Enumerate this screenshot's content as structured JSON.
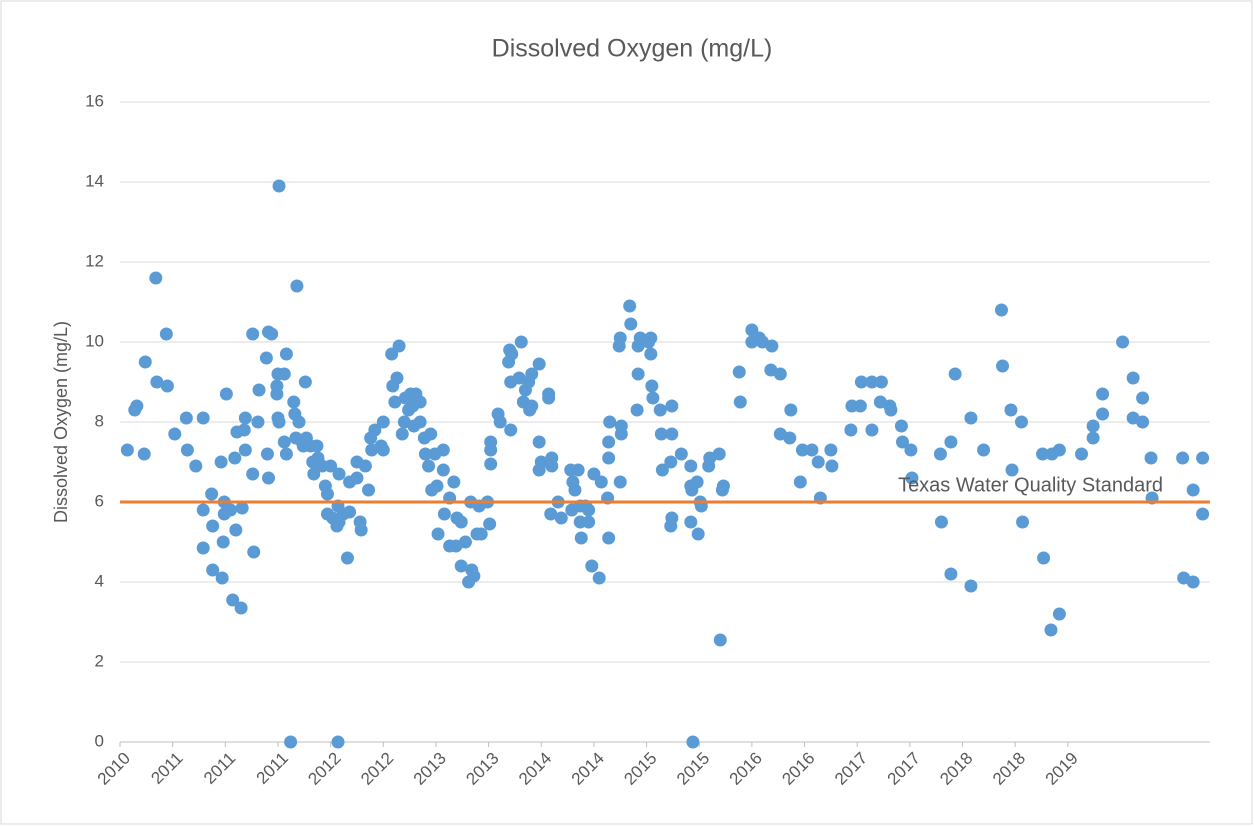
{
  "chart_data": {
    "type": "scatter",
    "title": "Dissolved Oxygen (mg/L)",
    "y_label": "Dissolved Oxygen (mg/L)",
    "ylim": [
      0,
      16
    ],
    "yticks": [
      0,
      2,
      4,
      6,
      8,
      10,
      12,
      14,
      16
    ],
    "xlim": [
      2010,
      2020.35
    ],
    "xticks": [
      {
        "value": 2010,
        "label": "2010"
      },
      {
        "value": 2010.5,
        "label": "2011"
      },
      {
        "value": 2011,
        "label": "2011"
      },
      {
        "value": 2011.5,
        "label": "2011"
      },
      {
        "value": 2012,
        "label": "2012"
      },
      {
        "value": 2012.5,
        "label": "2012"
      },
      {
        "value": 2013,
        "label": "2013"
      },
      {
        "value": 2013.5,
        "label": "2013"
      },
      {
        "value": 2014,
        "label": "2014"
      },
      {
        "value": 2014.5,
        "label": "2014"
      },
      {
        "value": 2015,
        "label": "2015"
      },
      {
        "value": 2015.5,
        "label": "2015"
      },
      {
        "value": 2016,
        "label": "2016"
      },
      {
        "value": 2016.5,
        "label": "2016"
      },
      {
        "value": 2017,
        "label": "2017"
      },
      {
        "value": 2017.5,
        "label": "2017"
      },
      {
        "value": 2018,
        "label": "2018"
      },
      {
        "value": 2018.5,
        "label": "2018"
      },
      {
        "value": 2019,
        "label": "2019"
      }
    ],
    "grid": true,
    "reference_line": {
      "value": 6,
      "label": "Texas Water Quality Standard",
      "color": "#ed7d31",
      "label_color": "#ffc000"
    },
    "series": [
      {
        "color": "#5b9bd5",
        "x": [
          2010.07,
          2010.14,
          2010.16,
          2010.23,
          2010.24,
          2010.34,
          2010.35,
          2010.44,
          2010.45,
          2010.52,
          2010.63,
          2010.64,
          2010.72,
          2010.79,
          2010.79,
          2010.79,
          2010.87,
          2010.88,
          2010.88,
          2010.96,
          2010.97,
          2010.98,
          2010.99,
          2010.99,
          2011.01,
          2011.05,
          2011.07,
          2011.09,
          2011.1,
          2011.11,
          2011.15,
          2011.16,
          2011.18,
          2011.19,
          2011.19,
          2011.26,
          2011.26,
          2011.27,
          2011.31,
          2011.32,
          2011.39,
          2011.4,
          2011.41,
          2011.41,
          2011.44,
          2011.49,
          2011.49,
          2011.5,
          2011.5,
          2011.51,
          2011.51,
          2011.56,
          2011.56,
          2011.58,
          2011.58,
          2011.62,
          2011.65,
          2011.66,
          2011.67,
          2011.68,
          2011.7,
          2011.73,
          2011.74,
          2011.76,
          2011.77,
          2011.81,
          2011.83,
          2011.84,
          2011.87,
          2011.88,
          2011.92,
          2011.95,
          2011.97,
          2011.97,
          2012.0,
          2012.02,
          2012.06,
          2012.07,
          2012.07,
          2012.08,
          2012.08,
          2012.12,
          2012.16,
          2012.18,
          2012.18,
          2012.25,
          2012.25,
          2012.28,
          2012.29,
          2012.33,
          2012.36,
          2012.38,
          2012.39,
          2012.42,
          2012.48,
          2012.5,
          2012.5,
          2012.58,
          2012.59,
          2012.61,
          2012.63,
          2012.65,
          2012.68,
          2012.7,
          2012.71,
          2012.74,
          2012.76,
          2012.78,
          2012.79,
          2012.81,
          2012.85,
          2012.85,
          2012.89,
          2012.9,
          2012.93,
          2012.95,
          2012.96,
          2012.99,
          2013.01,
          2013.02,
          2013.07,
          2013.07,
          2013.08,
          2013.13,
          2013.13,
          2013.17,
          2013.19,
          2013.2,
          2013.24,
          2013.24,
          2013.28,
          2013.31,
          2013.33,
          2013.34,
          2013.36,
          2013.39,
          2013.41,
          2013.43,
          2013.49,
          2013.51,
          2013.52,
          2013.52,
          2013.52,
          2013.59,
          2013.61,
          2013.69,
          2013.7,
          2013.71,
          2013.71,
          2013.72,
          2013.79,
          2013.81,
          2013.83,
          2013.85,
          2013.88,
          2013.89,
          2013.91,
          2013.91,
          2013.98,
          2013.98,
          2013.98,
          2014.0,
          2014.07,
          2014.07,
          2014.09,
          2014.1,
          2014.1,
          2014.16,
          2014.19,
          2014.28,
          2014.29,
          2014.3,
          2014.32,
          2014.35,
          2014.37,
          2014.37,
          2014.38,
          2014.42,
          2014.45,
          2014.45,
          2014.48,
          2014.5,
          2014.55,
          2014.57,
          2014.63,
          2014.64,
          2014.64,
          2014.64,
          2014.65,
          2014.74,
          2014.75,
          2014.75,
          2014.76,
          2014.76,
          2014.84,
          2014.85,
          2014.91,
          2014.92,
          2014.92,
          2014.94,
          2015.02,
          2015.04,
          2015.04,
          2015.05,
          2015.06,
          2015.13,
          2015.14,
          2015.15,
          2015.23,
          2015.23,
          2015.24,
          2015.24,
          2015.24,
          2015.33,
          2015.42,
          2015.42,
          2015.42,
          2015.43,
          2015.44,
          2015.48,
          2015.49,
          2015.51,
          2015.52,
          2015.59,
          2015.6,
          2015.69,
          2015.7,
          2015.72,
          2015.73,
          2015.88,
          2015.89,
          2016.0,
          2016.0,
          2016.07,
          2016.1,
          2016.18,
          2016.19,
          2016.27,
          2016.27,
          2016.36,
          2016.37,
          2016.46,
          2016.48,
          2016.57,
          2016.63,
          2016.65,
          2016.75,
          2016.76,
          2016.94,
          2016.95,
          2017.03,
          2017.04,
          2017.14,
          2017.14,
          2017.22,
          2017.23,
          2017.31,
          2017.32,
          2017.42,
          2017.43,
          2017.51,
          2017.52,
          2017.79,
          2017.8,
          2017.89,
          2017.89,
          2017.93,
          2018.08,
          2018.08,
          2018.2,
          2018.37,
          2018.38,
          2018.46,
          2018.47,
          2018.56,
          2018.57,
          2018.76,
          2018.77,
          2018.84,
          2018.85,
          2018.92,
          2018.92,
          2019.13,
          2019.24,
          2019.24,
          2019.33,
          2019.33,
          2019.52,
          2019.62,
          2019.62,
          2019.71,
          2019.71,
          2019.79,
          2019.8,
          2020.09,
          2020.1,
          2020.19,
          2020.19,
          2020.28,
          2020.28
        ],
        "values": [
          7.3,
          8.3,
          8.4,
          7.2,
          9.5,
          11.6,
          9.0,
          10.2,
          8.9,
          7.7,
          8.1,
          7.3,
          6.9,
          8.1,
          5.8,
          4.85,
          6.2,
          5.4,
          4.3,
          7.0,
          4.1,
          5.0,
          6.0,
          5.7,
          8.7,
          5.8,
          3.55,
          7.1,
          5.3,
          7.75,
          3.35,
          5.85,
          7.8,
          8.1,
          7.3,
          10.2,
          6.7,
          4.75,
          8.0,
          8.8,
          9.6,
          7.2,
          6.6,
          10.25,
          10.2,
          8.9,
          8.7,
          8.1,
          9.2,
          8.0,
          13.9,
          9.2,
          7.5,
          9.7,
          7.2,
          0,
          8.5,
          8.2,
          7.6,
          11.4,
          8.0,
          7.5,
          7.4,
          9.0,
          7.6,
          7.4,
          7.0,
          6.7,
          7.4,
          7.1,
          6.9,
          6.4,
          6.2,
          5.7,
          6.9,
          5.6,
          5.4,
          5.9,
          0,
          6.7,
          5.5,
          5.7,
          4.6,
          6.5,
          5.75,
          7.0,
          6.6,
          5.5,
          5.3,
          6.9,
          6.3,
          7.6,
          7.3,
          7.8,
          7.4,
          8.0,
          7.3,
          9.7,
          8.9,
          8.5,
          9.1,
          9.9,
          7.7,
          8.0,
          8.6,
          8.3,
          8.7,
          8.4,
          7.9,
          8.7,
          8.5,
          8.0,
          7.6,
          7.2,
          6.9,
          7.7,
          6.3,
          7.2,
          6.4,
          5.2,
          7.3,
          6.8,
          5.7,
          4.9,
          6.1,
          6.5,
          4.9,
          5.6,
          5.5,
          4.4,
          5.0,
          4.0,
          6.0,
          4.3,
          4.15,
          5.2,
          5.9,
          5.2,
          6.0,
          5.45,
          7.5,
          7.3,
          6.95,
          8.2,
          8.0,
          9.5,
          9.8,
          7.8,
          9.0,
          9.7,
          9.1,
          10.0,
          8.5,
          8.8,
          9.0,
          8.3,
          8.4,
          9.2,
          9.45,
          7.5,
          6.8,
          7.0,
          8.6,
          8.7,
          5.7,
          7.1,
          6.9,
          6.0,
          5.6,
          6.8,
          5.8,
          6.5,
          6.3,
          6.8,
          5.9,
          5.5,
          5.1,
          5.9,
          5.5,
          5.8,
          4.4,
          6.7,
          4.1,
          6.5,
          6.1,
          7.1,
          5.1,
          7.5,
          8.0,
          9.9,
          10.1,
          6.5,
          7.7,
          7.9,
          10.9,
          10.45,
          8.3,
          9.9,
          9.2,
          10.1,
          10.0,
          10.1,
          9.7,
          8.9,
          8.6,
          8.3,
          7.7,
          6.8,
          7.0,
          5.4,
          8.4,
          7.7,
          5.6,
          7.2,
          6.9,
          5.5,
          6.4,
          6.3,
          0,
          6.5,
          5.2,
          6.0,
          5.9,
          6.9,
          7.1,
          7.2,
          2.55,
          6.3,
          6.4,
          9.25,
          8.5,
          10.3,
          10.0,
          10.1,
          10.0,
          9.3,
          9.9,
          9.2,
          7.7,
          7.6,
          8.3,
          6.5,
          7.3,
          7.3,
          7.0,
          6.1,
          7.3,
          6.9,
          7.8,
          8.4,
          8.4,
          9.0,
          9.0,
          7.8,
          8.5,
          9.0,
          8.4,
          8.3,
          7.9,
          7.5,
          7.3,
          6.6,
          7.2,
          5.5,
          7.5,
          4.2,
          9.2,
          8.1,
          3.9,
          7.3,
          10.8,
          9.4,
          8.3,
          6.8,
          8.0,
          5.5,
          7.2,
          4.6,
          2.8,
          7.2,
          7.3,
          3.2,
          7.2,
          7.9,
          7.6,
          8.7,
          8.2,
          10.0,
          9.1,
          8.1,
          8.6,
          8.0,
          7.1,
          6.1,
          7.1,
          4.1,
          6.3,
          4.0,
          7.1,
          5.7
        ]
      }
    ]
  }
}
